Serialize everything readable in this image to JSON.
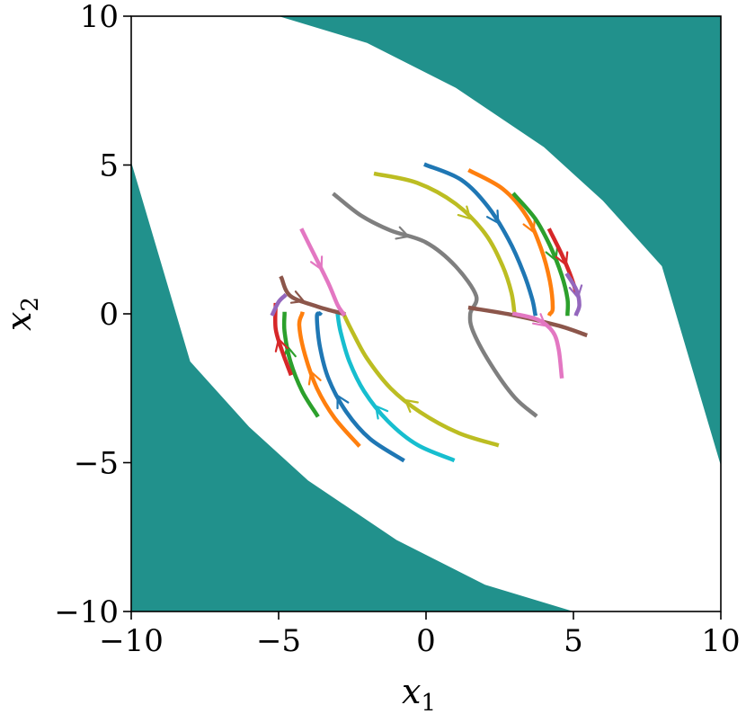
{
  "chart_data": {
    "type": "line",
    "title": "",
    "xlabel": "x",
    "xlabel_sub": "1",
    "ylabel": "x",
    "ylabel_sub": "2",
    "xlim": [
      -10,
      10
    ],
    "ylim": [
      -10,
      10
    ],
    "x_ticks": [
      -10,
      -5,
      0,
      5,
      10
    ],
    "y_ticks": [
      -10,
      -5,
      0,
      5,
      10
    ],
    "x_tick_labels": [
      "−10",
      "−5",
      "0",
      "5",
      "10"
    ],
    "y_tick_labels": [
      "−10",
      "−5",
      "0",
      "5",
      "10"
    ],
    "grid": false,
    "legend": "none",
    "background_region": {
      "color": "#21918c",
      "upper_right_boundary": [
        [
          -5,
          10
        ],
        [
          -2,
          9.1
        ],
        [
          1,
          7.6
        ],
        [
          4,
          5.6
        ],
        [
          6,
          3.8
        ],
        [
          8,
          1.6
        ],
        [
          10,
          -5.1
        ]
      ],
      "lower_left_boundary": [
        [
          -10,
          5.1
        ],
        [
          -8,
          -1.6
        ],
        [
          -6,
          -3.8
        ],
        [
          -4,
          -5.6
        ],
        [
          -1,
          -7.6
        ],
        [
          2,
          -9.1
        ],
        [
          5,
          -10
        ]
      ]
    },
    "series": [
      {
        "color": "#ff7f0e",
        "points": [
          [
            1.5,
            4.8
          ],
          [
            2.6,
            4.2
          ],
          [
            3.4,
            3.3
          ],
          [
            3.9,
            2.2
          ],
          [
            4.2,
            1.1
          ],
          [
            4.3,
            0.2
          ],
          [
            4.2,
            0.0
          ]
        ],
        "arrow_at": 2
      },
      {
        "color": "#1f77b4",
        "points": [
          [
            0.0,
            5.0
          ],
          [
            1.2,
            4.5
          ],
          [
            2.1,
            3.6
          ],
          [
            2.8,
            2.5
          ],
          [
            3.3,
            1.4
          ],
          [
            3.6,
            0.5
          ],
          [
            3.7,
            0.0
          ]
        ],
        "arrow_at": 2
      },
      {
        "color": "#2ca02c",
        "points": [
          [
            3.0,
            4.0
          ],
          [
            3.7,
            3.2
          ],
          [
            4.2,
            2.3
          ],
          [
            4.6,
            1.3
          ],
          [
            4.8,
            0.5
          ],
          [
            4.8,
            0.0
          ]
        ],
        "arrow_at": 2
      },
      {
        "color": "#d62728",
        "points": [
          [
            4.2,
            2.8
          ],
          [
            4.6,
            2.0
          ],
          [
            4.9,
            1.3
          ],
          [
            5.1,
            0.7
          ]
        ],
        "arrow_at": 1
      },
      {
        "color": "#9467bd",
        "points": [
          [
            4.8,
            1.3
          ],
          [
            5.1,
            0.8
          ],
          [
            5.2,
            0.3
          ],
          [
            5.1,
            0.0
          ]
        ],
        "arrow_at": 1
      },
      {
        "color": "#bcbd22",
        "points": [
          [
            -1.7,
            4.7
          ],
          [
            -0.3,
            4.4
          ],
          [
            1.0,
            3.7
          ],
          [
            2.0,
            2.7
          ],
          [
            2.6,
            1.6
          ],
          [
            2.9,
            0.7
          ],
          [
            3.0,
            0.0
          ]
        ],
        "arrow_at": 2
      },
      {
        "color": "#7f7f7f",
        "points": [
          [
            -3.1,
            4.0
          ],
          [
            -2.2,
            3.3
          ],
          [
            -1.2,
            2.8
          ],
          [
            0.0,
            2.4
          ],
          [
            1.0,
            1.6
          ],
          [
            1.7,
            0.6
          ],
          [
            1.5,
            0.0
          ],
          [
            1.6,
            -0.6
          ],
          [
            2.2,
            -1.7
          ],
          [
            3.0,
            -2.8
          ],
          [
            3.7,
            -3.4
          ]
        ],
        "arrow_at": 2
      },
      {
        "color": "#8c564b",
        "points": [
          [
            1.5,
            0.2
          ],
          [
            3.0,
            -0.05
          ],
          [
            4.5,
            -0.4
          ],
          [
            5.4,
            -0.7
          ]
        ],
        "arrow_at": -1
      },
      {
        "color": "#e377c2",
        "points": [
          [
            3.0,
            0.0
          ],
          [
            3.8,
            -0.2
          ],
          [
            4.3,
            -0.6
          ],
          [
            4.5,
            -1.2
          ],
          [
            4.6,
            -2.1
          ]
        ],
        "arrow_at": 1
      },
      {
        "color": "#2ca02c",
        "points": [
          [
            -3.7,
            -3.4
          ],
          [
            -4.2,
            -2.6
          ],
          [
            -4.6,
            -1.6
          ],
          [
            -4.8,
            -0.6
          ],
          [
            -4.8,
            0.0
          ]
        ],
        "arrow_at": 2
      },
      {
        "color": "#ff7f0e",
        "points": [
          [
            -2.3,
            -4.4
          ],
          [
            -3.1,
            -3.5
          ],
          [
            -3.7,
            -2.5
          ],
          [
            -4.1,
            -1.4
          ],
          [
            -4.3,
            -0.4
          ],
          [
            -4.2,
            0.0
          ]
        ],
        "arrow_at": 2
      },
      {
        "color": "#1f77b4",
        "points": [
          [
            -0.8,
            -4.9
          ],
          [
            -1.9,
            -4.2
          ],
          [
            -2.7,
            -3.3
          ],
          [
            -3.3,
            -2.2
          ],
          [
            -3.6,
            -1.1
          ],
          [
            -3.7,
            -0.1
          ],
          [
            -3.6,
            0.0
          ]
        ],
        "arrow_at": 2
      },
      {
        "color": "#17becf",
        "points": [
          [
            0.9,
            -4.9
          ],
          [
            -0.3,
            -4.4
          ],
          [
            -1.3,
            -3.6
          ],
          [
            -2.1,
            -2.6
          ],
          [
            -2.6,
            -1.6
          ],
          [
            -2.9,
            -0.6
          ],
          [
            -3.0,
            0.0
          ]
        ],
        "arrow_at": 2
      },
      {
        "color": "#bcbd22",
        "points": [
          [
            2.4,
            -4.4
          ],
          [
            1.1,
            -4.0
          ],
          [
            -0.2,
            -3.3
          ],
          [
            -1.2,
            -2.5
          ],
          [
            -2.0,
            -1.5
          ],
          [
            -2.5,
            -0.6
          ],
          [
            -2.8,
            0.0
          ]
        ],
        "arrow_at": 2
      },
      {
        "color": "#d62728",
        "points": [
          [
            -4.6,
            -2.0
          ],
          [
            -4.9,
            -1.2
          ],
          [
            -5.1,
            -0.5
          ],
          [
            -5.1,
            0.3
          ]
        ],
        "arrow_at": 1
      },
      {
        "color": "#9467bd",
        "points": [
          [
            -5.2,
            0.0
          ],
          [
            -5.0,
            0.4
          ],
          [
            -4.8,
            0.6
          ]
        ],
        "arrow_at": -1
      },
      {
        "color": "#8c564b",
        "points": [
          [
            -4.9,
            1.2
          ],
          [
            -4.6,
            0.6
          ],
          [
            -3.7,
            0.25
          ],
          [
            -2.8,
            0.0
          ]
        ],
        "arrow_at": 1
      },
      {
        "color": "#e377c2",
        "points": [
          [
            -4.2,
            2.8
          ],
          [
            -3.8,
            2.0
          ],
          [
            -3.3,
            1.0
          ],
          [
            -3.0,
            0.3
          ],
          [
            -2.8,
            0.0
          ]
        ],
        "arrow_at": 1
      }
    ]
  }
}
